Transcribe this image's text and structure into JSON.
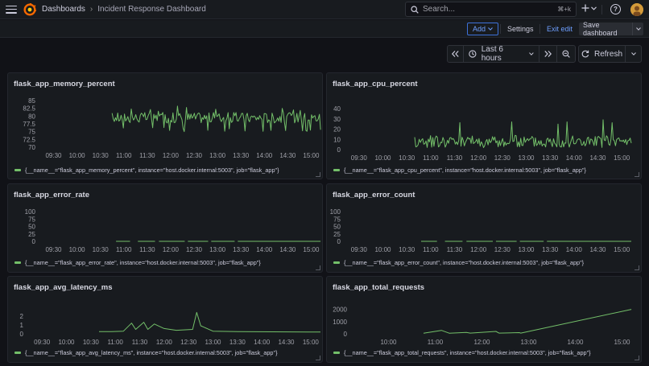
{
  "nav": {
    "breadcrumb_root": "Dashboards",
    "breadcrumb_separator": "›",
    "breadcrumb_current": "Incident Response Dashboard",
    "search_placeholder": "Search...",
    "search_shortcut": "⌘+k"
  },
  "toolbar": {
    "add_label": "Add",
    "settings_label": "Settings",
    "exit_edit_label": "Exit edit",
    "save_label": "Save dashboard"
  },
  "time_controls": {
    "range_label": "Last 6 hours",
    "refresh_label": "Refresh"
  },
  "colors": {
    "series": "#73bf69",
    "accent": "#6e9fff",
    "background": "#111217",
    "panel": "#181b1f"
  },
  "icons": [
    "menu-icon",
    "grafana-logo",
    "search-icon",
    "plus-icon",
    "help-icon",
    "user-avatar",
    "chevron-down-icon",
    "zoom-back-icon",
    "clock-icon",
    "zoom-forward-icon",
    "zoom-out-icon",
    "refresh-icon",
    "resize-handle-icon"
  ],
  "panels": [
    {
      "title": "flask_app_memory_percent",
      "legend": "{__name__=\"flask_app_memory_percent\", instance=\"host.docker.internal:5003\", job=\"flask_app\"}",
      "chart_data": {
        "type": "line",
        "title": "flask_app_memory_percent",
        "y_ticks": [
          "85",
          "82.5",
          "80",
          "77.5",
          "75",
          "72.5",
          "70"
        ],
        "ylim": [
          70,
          85
        ],
        "x_ticks": [
          "09:30",
          "10:00",
          "10:30",
          "11:00",
          "11:30",
          "12:00",
          "12:30",
          "13:00",
          "13:30",
          "14:00",
          "14:30",
          "15:00"
        ],
        "x_range": [
          "09:14",
          "15:14"
        ],
        "series": [
          {
            "name": "{__name__=\"flask_app_memory_percent\", instance=\"host.docker.internal:5003\", job=\"flask_app\"}",
            "segments": [
              [
                "10:45",
                "15:12"
              ]
            ],
            "values_range": [
              75,
              84
            ],
            "typical": 79.5
          }
        ]
      }
    },
    {
      "title": "flask_app_cpu_percent",
      "legend": "{__name__=\"flask_app_cpu_percent\", instance=\"host.docker.internal:5003\", job=\"flask_app\"}",
      "chart_data": {
        "type": "line",
        "title": "flask_app_cpu_percent",
        "y_ticks": [
          "40",
          "30",
          "20",
          "10",
          "0"
        ],
        "ylim": [
          0,
          40
        ],
        "x_ticks": [
          "09:30",
          "10:00",
          "10:30",
          "11:00",
          "11:30",
          "12:00",
          "12:30",
          "13:00",
          "13:30",
          "14:00",
          "14:30",
          "15:00"
        ],
        "x_range": [
          "09:14",
          "15:14"
        ],
        "series": [
          {
            "name": "{__name__=\"flask_app_cpu_percent\", instance=\"host.docker.internal:5003\", job=\"flask_app\"}",
            "segments": [
              [
                "10:40",
                "15:12"
              ]
            ],
            "values_range": [
              1,
              33
            ],
            "typical": 8
          }
        ]
      }
    },
    {
      "title": "flask_app_error_rate",
      "legend": "{__name__=\"flask_app_error_rate\", instance=\"host.docker.internal:5003\", job=\"flask_app\"}",
      "chart_data": {
        "type": "line",
        "title": "flask_app_error_rate",
        "y_ticks": [
          "100",
          "75",
          "50",
          "25",
          "0"
        ],
        "ylim": [
          0,
          100
        ],
        "x_ticks": [
          "09:30",
          "10:00",
          "10:30",
          "11:00",
          "11:30",
          "12:00",
          "12:30",
          "13:00",
          "13:30",
          "14:00",
          "14:30",
          "15:00"
        ],
        "x_range": [
          "09:14",
          "15:14"
        ],
        "series": [
          {
            "name": "{__name__=\"flask_app_error_rate\", instance=\"host.docker.internal:5003\", job=\"flask_app\"}",
            "segments": [
              [
                "10:50",
                "11:08"
              ],
              [
                "11:18",
                "11:40"
              ],
              [
                "11:45",
                "12:18"
              ],
              [
                "12:22",
                "12:48"
              ],
              [
                "12:52",
                "13:22"
              ],
              [
                "13:26",
                "15:12"
              ]
            ],
            "values": 0
          }
        ]
      }
    },
    {
      "title": "flask_app_error_count",
      "legend": "{__name__=\"flask_app_error_count\", instance=\"host.docker.internal:5003\", job=\"flask_app\"}",
      "chart_data": {
        "type": "line",
        "title": "flask_app_error_count",
        "y_ticks": [
          "100",
          "75",
          "50",
          "25",
          "0"
        ],
        "ylim": [
          0,
          100
        ],
        "x_ticks": [
          "09:30",
          "10:00",
          "10:30",
          "11:00",
          "11:30",
          "12:00",
          "12:30",
          "13:00",
          "13:30",
          "14:00",
          "14:30",
          "15:00"
        ],
        "x_range": [
          "09:14",
          "15:14"
        ],
        "series": [
          {
            "name": "{__name__=\"flask_app_error_count\", instance=\"host.docker.internal:5003\", job=\"flask_app\"}",
            "segments": [
              [
                "10:48",
                "11:08"
              ],
              [
                "11:18",
                "11:40"
              ],
              [
                "11:45",
                "12:18"
              ],
              [
                "12:22",
                "12:48"
              ],
              [
                "12:52",
                "13:22"
              ],
              [
                "13:26",
                "15:12"
              ]
            ],
            "values": 0
          }
        ]
      }
    },
    {
      "title": "flask_app_avg_latency_ms",
      "legend": "{__name__=\"flask_app_avg_latency_ms\", instance=\"host.docker.internal:5003\", job=\"flask_app\"}",
      "chart_data": {
        "type": "line",
        "title": "flask_app_avg_latency_ms",
        "y_ticks": [
          "2",
          "1",
          "0"
        ],
        "ylim": [
          0,
          2.8
        ],
        "x_ticks": [
          "09:30",
          "10:00",
          "10:30",
          "11:00",
          "11:30",
          "12:00",
          "12:30",
          "13:00",
          "13:30",
          "14:00",
          "14:30",
          "15:00"
        ],
        "x_range": [
          "09:14",
          "15:14"
        ],
        "series": [
          {
            "name": "{__name__=\"flask_app_avg_latency_ms\", instance=\"host.docker.internal:5003\", job=\"flask_app\"}",
            "segments": [
              [
                "10:40",
                "10:55"
              ],
              [
                "11:10",
                "15:12"
              ]
            ],
            "points": [
              [
                "10:40",
                0.25
              ],
              [
                "10:55",
                0.25
              ],
              [
                "11:10",
                0.3
              ],
              [
                "11:20",
                1.2
              ],
              [
                "11:25",
                0.5
              ],
              [
                "11:35",
                1.3
              ],
              [
                "11:40",
                0.5
              ],
              [
                "11:48",
                1.1
              ],
              [
                "12:00",
                0.6
              ],
              [
                "12:15",
                0.4
              ],
              [
                "12:35",
                0.5
              ],
              [
                "12:40",
                2.4
              ],
              [
                "12:45",
                0.9
              ],
              [
                "13:00",
                0.3
              ],
              [
                "13:30",
                0.25
              ],
              [
                "15:12",
                0.2
              ]
            ]
          }
        ]
      }
    },
    {
      "title": "flask_app_total_requests",
      "legend": "{__name__=\"flask_app_total_requests\", instance=\"host.docker.internal:5003\", job=\"flask_app\"}",
      "chart_data": {
        "type": "line",
        "title": "flask_app_total_requests",
        "y_ticks": [
          "2000",
          "1000",
          "0"
        ],
        "ylim": [
          0,
          2300
        ],
        "x_ticks": [
          "10:00",
          "11:00",
          "12:00",
          "13:00",
          "14:00",
          "15:00"
        ],
        "x_range": [
          "09:14",
          "15:14"
        ],
        "series": [
          {
            "name": "{__name__=\"flask_app_total_requests\", instance=\"host.docker.internal:5003\", job=\"flask_app\"}",
            "points": [
              [
                "10:45",
                50
              ],
              [
                "11:08",
                280
              ],
              [
                "11:18",
                50
              ],
              [
                "11:40",
                120
              ],
              [
                "11:45",
                60
              ],
              [
                "12:18",
                200
              ],
              [
                "12:22",
                60
              ],
              [
                "12:48",
                100
              ],
              [
                "12:50",
                60
              ],
              [
                "15:12",
                2000
              ]
            ]
          }
        ]
      }
    }
  ]
}
